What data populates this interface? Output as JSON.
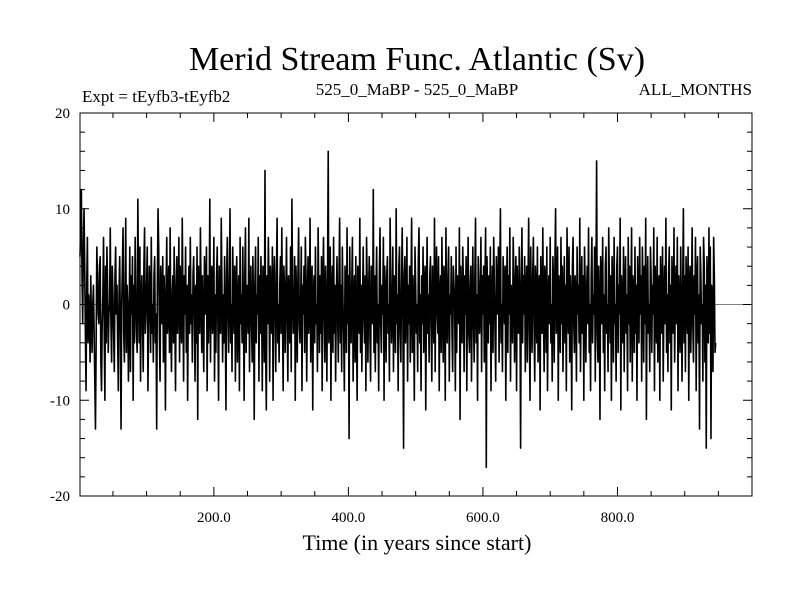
{
  "chart_data": {
    "type": "line",
    "title": "Merid Stream Func. Atlantic (Sv)",
    "subtitle_left": "Expt = tEyfb3-tEyfb2",
    "subtitle_center": "525_0_MaBP - 525_0_MaBP",
    "subtitle_right": "ALL_MONTHS",
    "xlabel": "Time (in years since start)",
    "ylabel": "",
    "xlim": [
      1,
      1000
    ],
    "ylim": [
      -20,
      20
    ],
    "x_ticks": [
      200,
      400,
      600,
      800
    ],
    "x_tick_labels": [
      "200.0",
      "400.0",
      "600.0",
      "800.0"
    ],
    "y_ticks": [
      -20,
      -10,
      0,
      10,
      20
    ],
    "y_tick_labels": [
      "-20",
      "-10",
      "0",
      "10",
      "20"
    ],
    "zero_line": true,
    "grid": false,
    "line_color": "#000000",
    "series": [
      {
        "x_start": 1,
        "x_step": 1,
        "values": [
          5,
          8,
          12,
          3,
          -2,
          6,
          10,
          4,
          -3,
          -9,
          2,
          7,
          -4,
          1,
          -1,
          -6,
          3,
          -2,
          -5,
          0,
          2,
          -3,
          -8,
          -13,
          -4,
          6,
          3,
          -1,
          -2,
          4,
          5,
          -6,
          -9,
          -2,
          1,
          7,
          -3,
          -10,
          4,
          -4,
          6,
          2,
          -5,
          -1,
          0,
          8,
          -2,
          -6,
          4,
          1,
          -3,
          -7,
          3,
          6,
          -1,
          2,
          -4,
          -9,
          1,
          5,
          -2,
          -13,
          0,
          4,
          8,
          -3,
          -6,
          1,
          9,
          -5,
          2,
          0,
          -8,
          -2,
          6,
          -7,
          3,
          -1,
          5,
          -10,
          2,
          -4,
          7,
          1,
          -3,
          -5,
          11,
          2,
          -4,
          6,
          -8,
          0,
          3,
          -2,
          -7,
          4,
          8,
          -3,
          -1,
          2,
          6,
          -9,
          -2,
          4,
          1,
          -5,
          7,
          -3,
          0,
          -6,
          3,
          5,
          -4,
          -1,
          -13,
          2,
          10,
          6,
          -3,
          -8,
          4,
          1,
          -2,
          5,
          -6,
          3,
          0,
          -11,
          2,
          7,
          -3,
          -1,
          4,
          -5,
          8,
          -2,
          -7,
          1,
          3,
          -4,
          6,
          -1,
          -9,
          2,
          5,
          -3,
          0,
          7,
          -6,
          4,
          -2,
          -4,
          9,
          1,
          -8,
          3,
          -1,
          6,
          -5,
          2,
          -10,
          0,
          4,
          -3,
          7,
          -2,
          1,
          -6,
          3,
          5,
          -1,
          -8,
          2,
          -4,
          6,
          -12,
          4,
          0,
          -3,
          8,
          1,
          -5,
          3,
          -2,
          -7,
          5,
          2,
          -1,
          6,
          -9,
          3,
          -4,
          0,
          11,
          -6,
          2,
          4,
          -3,
          -1,
          7,
          -8,
          1,
          -5,
          3,
          6,
          -2,
          -10,
          4,
          0,
          -3,
          9,
          2,
          -6,
          1,
          -4,
          5,
          -2,
          -11,
          3,
          7,
          -1,
          -5,
          2,
          10,
          -4,
          0,
          -7,
          6,
          1,
          -3,
          4,
          -8,
          2,
          5,
          -6,
          0,
          3,
          -9,
          7,
          -2,
          1,
          -4,
          6,
          -1,
          -10,
          3,
          8,
          -5,
          2,
          0,
          -3,
          9,
          -7,
          1,
          4,
          -2,
          -6,
          5,
          0,
          -12,
          2,
          6,
          -4,
          1,
          -1,
          7,
          -8,
          3,
          -3,
          5,
          0,
          -9,
          4,
          2,
          -6,
          14,
          -5,
          -11,
          3,
          -2,
          7,
          1,
          -8,
          4,
          0,
          -3,
          6,
          -10,
          2,
          5,
          -1,
          -7,
          3,
          9,
          -4,
          0,
          -6,
          2,
          5,
          -3,
          8,
          -1,
          -9,
          4,
          2,
          -5,
          1,
          7,
          -2,
          -8,
          3,
          0,
          -4,
          6,
          -7,
          11,
          2,
          -3,
          -1,
          5,
          -10,
          4,
          1,
          -6,
          3,
          8,
          -2,
          -4,
          0,
          6,
          -9,
          2,
          -1,
          4,
          -5,
          7,
          3,
          -8,
          0,
          5,
          -3,
          -1,
          9,
          -6,
          2,
          4,
          -11,
          1,
          3,
          -4,
          6,
          -2,
          0,
          -7,
          8,
          1,
          -5,
          3,
          -3,
          5,
          -9,
          2,
          7,
          -1,
          -6,
          4,
          0,
          -8,
          3,
          16,
          -4,
          -2,
          6,
          -10,
          1,
          4,
          -5,
          7,
          -3,
          2,
          -8,
          0,
          5,
          -1,
          -6,
          3,
          9,
          -4,
          2,
          -7,
          6,
          0,
          -3,
          -9,
          4,
          1,
          -5,
          8,
          -2,
          3,
          -14,
          6,
          -1,
          -4,
          2,
          7,
          -8,
          0,
          3,
          -6,
          5,
          -2,
          -10,
          4,
          1,
          -3,
          9,
          -5,
          2,
          -7,
          0,
          6,
          -1,
          -4,
          3,
          -9,
          7,
          2,
          -6,
          1,
          5,
          -3,
          -8,
          4,
          0,
          -2,
          12,
          -5,
          3,
          -7,
          1,
          6,
          -4,
          0,
          -9,
          3,
          8,
          -2,
          -5,
          2,
          -1,
          7,
          -10,
          4,
          1,
          -6,
          3,
          5,
          -3,
          0,
          -8,
          9,
          2,
          -4,
          -1,
          6,
          -7,
          3,
          0,
          -5,
          10,
          -2,
          1,
          -9,
          4,
          6,
          -3,
          -6,
          2,
          8,
          -1,
          -15,
          3,
          5,
          -4,
          0,
          7,
          -8,
          2,
          -2,
          4,
          -6,
          1,
          9,
          -5,
          3,
          -1,
          -10,
          6,
          2,
          -3,
          0,
          -7,
          5,
          8,
          -4,
          1,
          -9,
          3,
          -2,
          6,
          -5,
          2,
          4,
          -11,
          0,
          7,
          -3,
          1,
          -6,
          3,
          5,
          -2,
          -8,
          4,
          0,
          -4,
          9,
          -7,
          2,
          6,
          -1,
          -3,
          5,
          -9,
          1,
          3,
          -5,
          7,
          0,
          -6,
          4,
          2,
          -10,
          8,
          -2,
          -4,
          3,
          6,
          -8,
          1,
          -1,
          5,
          -3,
          -7,
          4,
          2,
          0,
          -9,
          6,
          -5,
          3,
          1,
          -2,
          8,
          -12,
          4,
          0,
          -4,
          6,
          2,
          -7,
          3,
          -1,
          5,
          -9,
          1,
          7,
          -3,
          -5,
          2,
          4,
          -8,
          0,
          6,
          -2,
          -6,
          3,
          9,
          -4,
          1,
          -10,
          5,
          2,
          -3,
          0,
          7,
          -7,
          3,
          -1,
          4,
          -6,
          2,
          8,
          -17,
          5,
          1,
          -4,
          3,
          -2,
          6,
          -9,
          0,
          4,
          -5,
          7,
          2,
          -3,
          -8,
          5,
          1,
          -1,
          6,
          -6,
          3,
          10,
          -4,
          0,
          -7,
          5,
          2,
          -2,
          4,
          -10,
          1,
          6,
          -5,
          3,
          -1,
          8,
          -8,
          2,
          0,
          -4,
          7,
          3,
          -6,
          1,
          5,
          -9,
          4,
          -2,
          -3,
          6,
          0,
          -15,
          2,
          8,
          -4,
          3,
          -1,
          5,
          -7,
          1,
          4,
          -6,
          2,
          9,
          -3,
          -10,
          6,
          0,
          -5,
          3,
          7,
          -2,
          -8,
          4,
          1,
          -4,
          6,
          -6,
          2,
          3,
          -11,
          5,
          0,
          -3,
          8,
          -1,
          -7,
          4,
          2,
          -5,
          6,
          -9,
          1,
          3,
          -2,
          7,
          -4,
          0,
          -8,
          5,
          2,
          -6,
          4,
          10,
          -3,
          -1,
          6,
          -10,
          3,
          1,
          -5,
          7,
          -2,
          4,
          -7,
          0,
          5,
          -4,
          2,
          -9,
          8,
          1,
          -3,
          6,
          -6,
          3,
          0,
          -11,
          4,
          7,
          -2,
          -5,
          3,
          1,
          -8,
          6,
          -1,
          2,
          -4,
          9,
          -7,
          0,
          5,
          -3,
          3,
          -10,
          6,
          2,
          -6,
          1,
          4,
          -2,
          8,
          -5,
          0,
          -9,
          3,
          7,
          -4,
          1,
          -1,
          6,
          -8,
          2,
          15,
          -3,
          -6,
          4,
          0,
          -12,
          5,
          3,
          -2,
          7,
          -5,
          1,
          -9,
          4,
          6,
          -3,
          0,
          -7,
          8,
          2,
          -4,
          3,
          -10,
          5,
          1,
          -6,
          7,
          -2,
          0,
          -8,
          4,
          6,
          -5,
          2,
          -1,
          9,
          -11,
          3,
          0,
          -4,
          6,
          -7,
          2,
          5,
          -3,
          1,
          -9,
          7,
          -2,
          4,
          -6,
          0,
          8,
          -8,
          3,
          1,
          -5,
          6,
          -3,
          2,
          -10,
          5,
          0,
          -4,
          7,
          -1,
          3,
          -8,
          6,
          2,
          -6,
          4,
          -2,
          9,
          -12,
          1,
          5,
          -3,
          0,
          -7,
          6,
          3,
          -5,
          2,
          -1,
          8,
          -9,
          4,
          0,
          -4,
          7,
          -6,
          2,
          3,
          -10,
          5,
          1,
          -3,
          6,
          -8,
          0,
          4,
          -2,
          9,
          -5,
          1,
          -7,
          3,
          6,
          -4,
          2,
          -11,
          5,
          0,
          -3,
          8,
          -6,
          1,
          4,
          -2,
          7,
          -9,
          3,
          0,
          -5,
          6,
          -1,
          -8,
          2,
          10,
          -4,
          3,
          -7,
          5,
          1,
          -3,
          6,
          -10,
          2,
          4,
          -5,
          0,
          8,
          -2,
          -6,
          3,
          -1,
          7,
          -9,
          2,
          5,
          -4,
          1,
          -13,
          6,
          3,
          -2,
          0,
          -8,
          7,
          4,
          -6,
          2,
          -15,
          5,
          1,
          -4,
          8,
          -3,
          6,
          -14,
          2,
          0,
          -7,
          7,
          3,
          -5,
          -4
        ]
      }
    ]
  }
}
